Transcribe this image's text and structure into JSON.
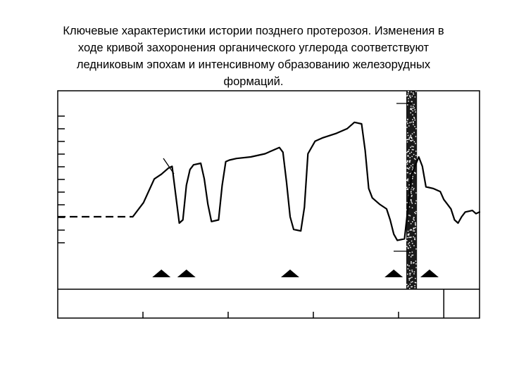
{
  "caption": {
    "lines": [
      "Ключевые характеристики истории позднего протерозоя.  Изменения в",
      "ходе кривой захоронения органического углерода соответствуют",
      "ледниковым эпохам и интенсивному образованию железорудных",
      "формаций."
    ]
  },
  "chart_data": {
    "type": "line",
    "title": "",
    "xlabel": "",
    "ylabel": "",
    "axis_labels_printed": false,
    "series": [
      {
        "style": "dashed",
        "points": [
          [
            0,
            40
          ],
          [
            16,
            40
          ],
          [
            21,
            40
          ]
        ]
      },
      {
        "style": "solid",
        "points": [
          [
            21,
            40
          ],
          [
            24,
            49
          ],
          [
            27,
            64
          ],
          [
            29,
            67
          ],
          [
            31,
            71
          ],
          [
            32,
            72
          ],
          [
            33,
            54
          ],
          [
            34,
            36
          ],
          [
            35,
            38
          ],
          [
            36,
            60
          ],
          [
            37,
            70
          ],
          [
            38,
            73
          ],
          [
            40,
            74
          ],
          [
            41,
            64
          ],
          [
            42,
            48
          ],
          [
            43,
            37
          ],
          [
            45,
            38
          ],
          [
            46,
            60
          ],
          [
            47,
            75
          ],
          [
            48,
            76
          ],
          [
            50,
            77
          ],
          [
            54,
            78
          ],
          [
            58,
            80
          ],
          [
            60,
            82
          ],
          [
            62,
            84
          ],
          [
            63,
            81
          ],
          [
            64,
            62
          ],
          [
            65,
            40
          ],
          [
            66,
            32
          ],
          [
            68,
            31
          ],
          [
            69,
            46
          ],
          [
            70,
            80
          ],
          [
            72,
            88
          ],
          [
            74,
            90
          ],
          [
            78,
            93
          ],
          [
            81,
            96
          ],
          [
            83,
            100
          ],
          [
            85,
            99
          ],
          [
            86,
            82
          ],
          [
            87,
            58
          ],
          [
            88,
            52
          ],
          [
            90,
            48
          ],
          [
            92,
            45
          ],
          [
            93,
            38
          ],
          [
            94,
            29
          ],
          [
            95,
            25
          ],
          [
            97,
            26
          ],
          [
            98,
            46
          ],
          [
            99,
            67
          ],
          [
            101,
            78
          ],
          [
            102,
            72
          ],
          [
            103,
            59
          ],
          [
            105,
            58
          ],
          [
            107,
            56
          ],
          [
            108,
            51
          ],
          [
            110,
            45
          ],
          [
            111,
            38
          ],
          [
            112,
            36
          ],
          [
            113,
            40
          ],
          [
            114,
            43
          ],
          [
            116,
            44
          ],
          [
            117,
            42
          ],
          [
            118,
            43
          ]
        ]
      }
    ],
    "pointer_lines": 3,
    "glaciation_markers": [
      29,
      36,
      65,
      94,
      104
    ],
    "shaded_band": [
      97.5,
      100.5
    ],
    "y_ticks": 11,
    "bottom_ticks": 4,
    "bottom_divider": 108,
    "xlim": [
      0,
      118
    ],
    "ylim": [
      -6,
      120
    ],
    "grid": false,
    "legend": "none",
    "colors": {
      "line": "#000000",
      "band": "#1a1a1a",
      "marker": "#000000"
    }
  }
}
